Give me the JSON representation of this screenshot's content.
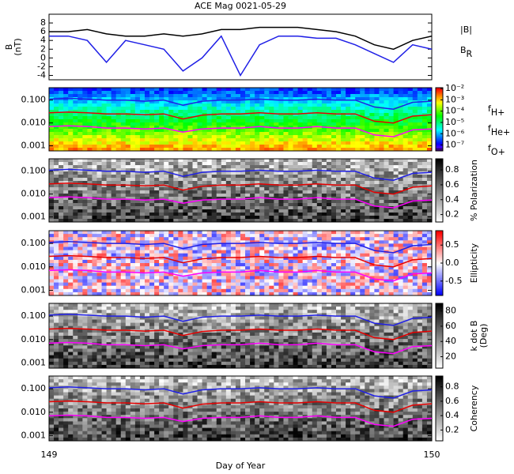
{
  "chart_data": [
    {
      "type": "line",
      "title": "ACE Mag 0021-05-29",
      "ylabel": [
        "B",
        "(nT)"
      ],
      "x": [
        149.0,
        149.05,
        149.1,
        149.15,
        149.2,
        149.25,
        149.3,
        149.35,
        149.4,
        149.45,
        149.5,
        149.55,
        149.6,
        149.65,
        149.7,
        149.75,
        149.8,
        149.85,
        149.9,
        149.95,
        150.0
      ],
      "xlim": [
        149,
        150
      ],
      "ylim": [
        -5,
        10
      ],
      "yticks": [
        -4,
        -2,
        0,
        2,
        4,
        6,
        8
      ],
      "series": [
        {
          "name": "|B|",
          "color": "#000000",
          "values": [
            6,
            6,
            6.5,
            5.5,
            5,
            5,
            5.5,
            5,
            5.5,
            6.5,
            6.5,
            7,
            7,
            7,
            6.5,
            6,
            5,
            3,
            2,
            4,
            5
          ]
        },
        {
          "name": "B_R",
          "color": "#1f1fe6",
          "values": [
            5,
            5,
            4,
            -1,
            4,
            3,
            2,
            -3,
            0,
            5,
            -4,
            3,
            5,
            5,
            4.5,
            4.5,
            3,
            1,
            -1,
            3,
            2
          ]
        }
      ]
    },
    {
      "type": "spectrogram",
      "x": [
        149.0,
        149.05,
        149.1,
        149.15,
        149.2,
        149.25,
        149.3,
        149.35,
        149.4,
        149.45,
        149.5,
        149.55,
        149.6,
        149.65,
        149.7,
        149.75,
        149.8,
        149.85,
        149.9,
        149.95,
        150.0
      ],
      "xlim": [
        149,
        150
      ],
      "ylim": [
        0.0006,
        0.35
      ],
      "log": true,
      "yticks": [
        0.001,
        {
          "value": 0.01,
          "label": "0.010"
        },
        {
          "value": 0.1,
          "label": "0.100"
        }
      ],
      "colorbar": {
        "colormap": "rainbow",
        "log": true,
        "lim": [
          3e-08,
          0.012
        ],
        "ticks": [
          {
            "value": 0.01,
            "label": "10⁻²"
          },
          {
            "value": 0.001,
            "label": "10⁻³"
          },
          {
            "value": 0.0001,
            "label": "10⁻⁴"
          },
          {
            "value": 1e-05,
            "label": "10⁻⁵"
          },
          {
            "value": 1e-06,
            "label": "10⁻⁶"
          },
          {
            "value": 1e-07,
            "label": "10⁻⁷"
          }
        ]
      },
      "series": [
        {
          "name": "f_H+",
          "color": "#1f1fe6",
          "values": [
            0.11,
            0.12,
            0.11,
            0.1,
            0.1,
            0.09,
            0.1,
            0.06,
            0.09,
            0.1,
            0.1,
            0.11,
            0.1,
            0.1,
            0.11,
            0.1,
            0.1,
            0.05,
            0.04,
            0.08,
            0.09
          ]
        },
        {
          "name": "f_He+",
          "color": "#e60000",
          "values": [
            0.028,
            0.03,
            0.028,
            0.025,
            0.025,
            0.023,
            0.025,
            0.015,
            0.022,
            0.025,
            0.025,
            0.028,
            0.025,
            0.025,
            0.028,
            0.025,
            0.025,
            0.012,
            0.01,
            0.02,
            0.023
          ]
        },
        {
          "name": "f_O+",
          "color": "#ff00ff",
          "values": [
            0.007,
            0.0075,
            0.007,
            0.006,
            0.006,
            0.0055,
            0.006,
            0.004,
            0.0055,
            0.006,
            0.006,
            0.007,
            0.006,
            0.006,
            0.007,
            0.006,
            0.006,
            0.003,
            0.0025,
            0.005,
            0.0055
          ]
        }
      ]
    },
    {
      "type": "spectrogram",
      "x": [
        149.0,
        149.05,
        149.1,
        149.15,
        149.2,
        149.25,
        149.3,
        149.35,
        149.4,
        149.45,
        149.5,
        149.55,
        149.6,
        149.65,
        149.7,
        149.75,
        149.8,
        149.85,
        149.9,
        149.95,
        150.0
      ],
      "xlim": [
        149,
        150
      ],
      "ylim": [
        0.0006,
        0.35
      ],
      "log": true,
      "yticks": [
        0.001,
        {
          "value": 0.01,
          "label": "0.010"
        },
        {
          "value": 0.1,
          "label": "0.100"
        }
      ],
      "colorbar": {
        "colormap": "gray",
        "label": [
          "% Polarization"
        ],
        "lim": [
          0.1,
          0.95
        ],
        "ticks": [
          0.2,
          0.4,
          0.6,
          0.8
        ]
      },
      "series": [
        {
          "color": "#1f1fe6",
          "values": [
            0.11,
            0.12,
            0.11,
            0.1,
            0.1,
            0.09,
            0.1,
            0.06,
            0.09,
            0.1,
            0.1,
            0.11,
            0.1,
            0.1,
            0.11,
            0.1,
            0.1,
            0.05,
            0.04,
            0.08,
            0.09
          ]
        },
        {
          "color": "#e60000",
          "values": [
            0.028,
            0.03,
            0.028,
            0.025,
            0.025,
            0.023,
            0.025,
            0.015,
            0.022,
            0.025,
            0.025,
            0.028,
            0.025,
            0.025,
            0.028,
            0.025,
            0.025,
            0.012,
            0.01,
            0.02,
            0.023
          ]
        },
        {
          "color": "#ff00ff",
          "values": [
            0.007,
            0.0075,
            0.007,
            0.006,
            0.006,
            0.0055,
            0.006,
            0.004,
            0.0055,
            0.006,
            0.006,
            0.007,
            0.006,
            0.006,
            0.007,
            0.006,
            0.006,
            0.003,
            0.0025,
            0.005,
            0.0055
          ]
        }
      ]
    },
    {
      "type": "spectrogram",
      "x": [
        149.0,
        149.05,
        149.1,
        149.15,
        149.2,
        149.25,
        149.3,
        149.35,
        149.4,
        149.45,
        149.5,
        149.55,
        149.6,
        149.65,
        149.7,
        149.75,
        149.8,
        149.85,
        149.9,
        149.95,
        150.0
      ],
      "xlim": [
        149,
        150
      ],
      "ylim": [
        0.0006,
        0.35
      ],
      "log": true,
      "yticks": [
        0.001,
        {
          "value": 0.01,
          "label": "0.010"
        },
        {
          "value": 0.1,
          "label": "0.100"
        }
      ],
      "colorbar": {
        "colormap": "redblue",
        "label": [
          "Ellipticity"
        ],
        "lim": [
          -0.9,
          0.9
        ],
        "ticks": [
          -0.5,
          {
            "value": 0,
            "label": "0.0"
          },
          0.5
        ]
      },
      "series": [
        {
          "color": "#1f1fe6",
          "values": [
            0.11,
            0.12,
            0.11,
            0.1,
            0.1,
            0.09,
            0.1,
            0.06,
            0.09,
            0.1,
            0.1,
            0.11,
            0.1,
            0.1,
            0.11,
            0.1,
            0.1,
            0.05,
            0.04,
            0.08,
            0.09
          ]
        },
        {
          "color": "#e60000",
          "values": [
            0.028,
            0.03,
            0.028,
            0.025,
            0.025,
            0.023,
            0.025,
            0.015,
            0.022,
            0.025,
            0.025,
            0.028,
            0.025,
            0.025,
            0.028,
            0.025,
            0.025,
            0.012,
            0.01,
            0.02,
            0.023
          ]
        },
        {
          "color": "#ff00ff",
          "values": [
            0.007,
            0.0075,
            0.007,
            0.006,
            0.006,
            0.0055,
            0.006,
            0.004,
            0.0055,
            0.006,
            0.006,
            0.007,
            0.006,
            0.006,
            0.007,
            0.006,
            0.006,
            0.003,
            0.0025,
            0.005,
            0.0055
          ]
        }
      ]
    },
    {
      "type": "spectrogram",
      "x": [
        149.0,
        149.05,
        149.1,
        149.15,
        149.2,
        149.25,
        149.3,
        149.35,
        149.4,
        149.45,
        149.5,
        149.55,
        149.6,
        149.65,
        149.7,
        149.75,
        149.8,
        149.85,
        149.9,
        149.95,
        150.0
      ],
      "xlim": [
        149,
        150
      ],
      "ylim": [
        0.0006,
        0.35
      ],
      "log": true,
      "yticks": [
        0.001,
        {
          "value": 0.01,
          "label": "0.010"
        },
        {
          "value": 0.1,
          "label": "0.100"
        }
      ],
      "colorbar": {
        "colormap": "gray",
        "label": [
          "k dot B",
          "(Deg)"
        ],
        "lim": [
          5,
          90
        ],
        "ticks": [
          20,
          40,
          60,
          80
        ]
      },
      "series": [
        {
          "color": "#1f1fe6",
          "values": [
            0.11,
            0.12,
            0.11,
            0.1,
            0.1,
            0.09,
            0.1,
            0.06,
            0.09,
            0.1,
            0.1,
            0.11,
            0.1,
            0.1,
            0.11,
            0.1,
            0.1,
            0.05,
            0.04,
            0.08,
            0.09
          ]
        },
        {
          "color": "#e60000",
          "values": [
            0.028,
            0.03,
            0.028,
            0.025,
            0.025,
            0.023,
            0.025,
            0.015,
            0.022,
            0.025,
            0.025,
            0.028,
            0.025,
            0.025,
            0.028,
            0.025,
            0.025,
            0.012,
            0.01,
            0.02,
            0.023
          ]
        },
        {
          "color": "#ff00ff",
          "values": [
            0.007,
            0.0075,
            0.007,
            0.006,
            0.006,
            0.0055,
            0.006,
            0.004,
            0.0055,
            0.006,
            0.006,
            0.007,
            0.006,
            0.006,
            0.007,
            0.006,
            0.006,
            0.003,
            0.0025,
            0.005,
            0.0055
          ]
        }
      ]
    },
    {
      "type": "spectrogram",
      "x": [
        149.0,
        149.05,
        149.1,
        149.15,
        149.2,
        149.25,
        149.3,
        149.35,
        149.4,
        149.45,
        149.5,
        149.55,
        149.6,
        149.65,
        149.7,
        149.75,
        149.8,
        149.85,
        149.9,
        149.95,
        150.0
      ],
      "xlim": [
        149,
        150
      ],
      "ylim": [
        0.0006,
        0.35
      ],
      "log": true,
      "yticks": [
        0.001,
        {
          "value": 0.01,
          "label": "0.010"
        },
        {
          "value": 0.1,
          "label": "0.100"
        }
      ],
      "xticks": [
        149,
        150
      ],
      "xlabel": "Day of Year",
      "colorbar": {
        "colormap": "gray",
        "label": [
          "Coherency"
        ],
        "lim": [
          0.05,
          0.95
        ],
        "ticks": [
          0.2,
          0.4,
          0.6,
          0.8
        ]
      },
      "series": [
        {
          "color": "#1f1fe6",
          "values": [
            0.11,
            0.12,
            0.11,
            0.1,
            0.1,
            0.09,
            0.1,
            0.06,
            0.09,
            0.1,
            0.1,
            0.11,
            0.1,
            0.1,
            0.11,
            0.1,
            0.1,
            0.05,
            0.04,
            0.08,
            0.09
          ]
        },
        {
          "color": "#e60000",
          "values": [
            0.028,
            0.03,
            0.028,
            0.025,
            0.025,
            0.023,
            0.025,
            0.015,
            0.022,
            0.025,
            0.025,
            0.028,
            0.025,
            0.025,
            0.028,
            0.025,
            0.025,
            0.012,
            0.01,
            0.02,
            0.023
          ]
        },
        {
          "color": "#ff00ff",
          "values": [
            0.007,
            0.0075,
            0.007,
            0.006,
            0.006,
            0.0055,
            0.006,
            0.004,
            0.0055,
            0.006,
            0.006,
            0.007,
            0.006,
            0.006,
            0.007,
            0.006,
            0.006,
            0.003,
            0.0025,
            0.005,
            0.0055
          ]
        }
      ]
    }
  ]
}
